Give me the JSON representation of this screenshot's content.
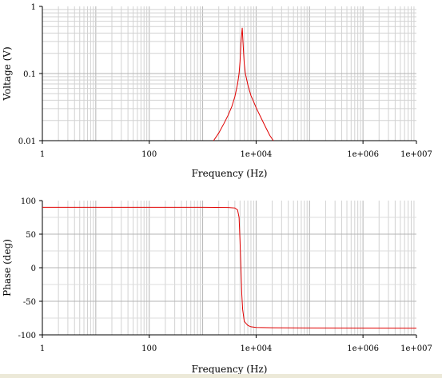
{
  "chart_data": [
    {
      "type": "line",
      "xscale": "log",
      "yscale": "log",
      "xlim": [
        1,
        10000000
      ],
      "ylim": [
        0.01,
        1
      ],
      "xlabel": "Frequency (Hz)",
      "ylabel": "Voltage (V)",
      "x_tick_labels": [
        "1",
        "100",
        "1e+004",
        "1e+006",
        "1e+007"
      ],
      "x_tick_values": [
        1,
        100,
        10000,
        1000000,
        10000000
      ],
      "y_tick_labels": [
        "1",
        "0.1",
        "0.01"
      ],
      "y_tick_values": [
        1,
        0.1,
        0.01
      ],
      "grid": true,
      "series": [
        {
          "color": "#e00000",
          "x": [
            1600,
            2000,
            2500,
            3000,
            3500,
            4000,
            4500,
            4800,
            5000,
            5200,
            5500,
            5800,
            6000,
            6300,
            7000,
            8000,
            9000,
            10000,
            12000,
            15000,
            18000,
            21000
          ],
          "y": [
            0.01,
            0.013,
            0.018,
            0.024,
            0.032,
            0.045,
            0.07,
            0.1,
            0.15,
            0.28,
            0.48,
            0.22,
            0.14,
            0.1,
            0.068,
            0.047,
            0.038,
            0.031,
            0.023,
            0.016,
            0.012,
            0.01
          ]
        }
      ]
    },
    {
      "type": "line",
      "xscale": "log",
      "yscale": "linear",
      "xlim": [
        1,
        10000000
      ],
      "ylim": [
        -100,
        100
      ],
      "xlabel": "Frequency (Hz)",
      "ylabel": "Phase (deg)",
      "x_tick_labels": [
        "1",
        "100",
        "1e+004",
        "1e+006",
        "1e+007"
      ],
      "x_tick_values": [
        1,
        100,
        10000,
        1000000,
        10000000
      ],
      "y_tick_labels": [
        "100",
        "50",
        "0",
        "-50",
        "-100"
      ],
      "y_tick_values": [
        100,
        50,
        0,
        -50,
        -100
      ],
      "grid": true,
      "series": [
        {
          "color": "#e00000",
          "x": [
            1,
            100,
            1000,
            3000,
            4000,
            4500,
            4800,
            5000,
            5200,
            5400,
            5600,
            6000,
            7000,
            8000,
            10000,
            20000,
            100000,
            10000000
          ],
          "y": [
            90,
            90,
            90,
            89.8,
            89,
            86,
            75,
            40,
            0,
            -40,
            -62,
            -80,
            -86,
            -88,
            -89,
            -89.5,
            -89.8,
            -90
          ]
        }
      ]
    }
  ]
}
